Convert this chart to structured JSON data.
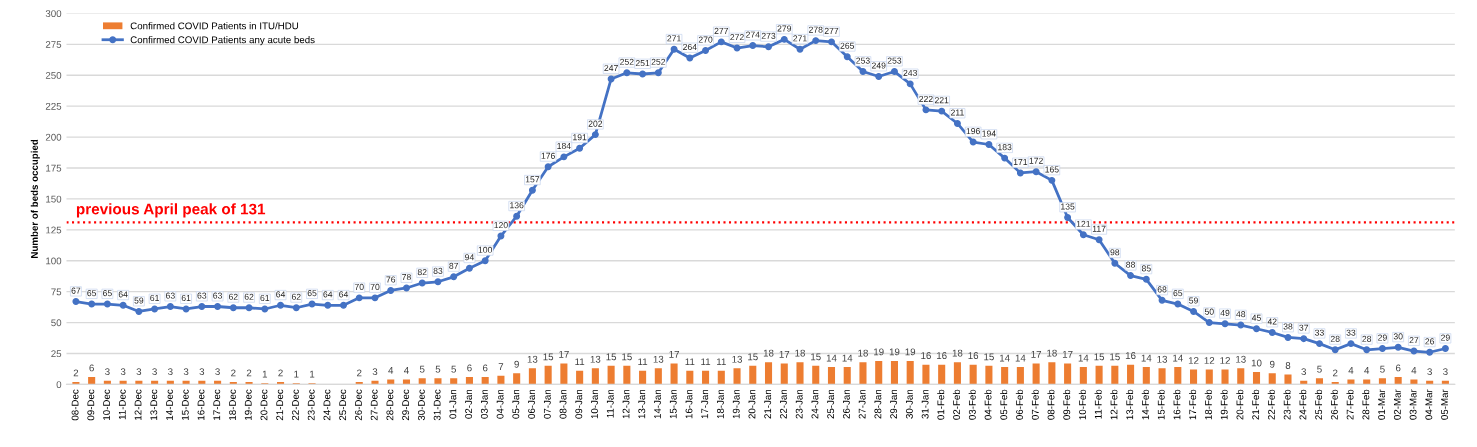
{
  "chart_data": {
    "type": "bar",
    "ylabel": "Number of beds occupied",
    "categories": [
      "08-Dec",
      "09-Dec",
      "10-Dec",
      "11-Dec",
      "12-Dec",
      "13-Dec",
      "14-Dec",
      "15-Dec",
      "16-Dec",
      "17-Dec",
      "18-Dec",
      "19-Dec",
      "20-Dec",
      "21-Dec",
      "22-Dec",
      "23-Dec",
      "24-Dec",
      "25-Dec",
      "26-Dec",
      "27-Dec",
      "28-Dec",
      "29-Dec",
      "30-Dec",
      "31-Dec",
      "01-Jan",
      "02-Jan",
      "03-Jan",
      "04-Jan",
      "05-Jan",
      "06-Jan",
      "07-Jan",
      "08-Jan",
      "09-Jan",
      "10-Jan",
      "11-Jan",
      "12-Jan",
      "13-Jan",
      "14-Jan",
      "15-Jan",
      "16-Jan",
      "17-Jan",
      "18-Jan",
      "19-Jan",
      "20-Jan",
      "21-Jan",
      "22-Jan",
      "23-Jan",
      "24-Jan",
      "25-Jan",
      "26-Jan",
      "27-Jan",
      "28-Jan",
      "29-Jan",
      "30-Jan",
      "31-Jan",
      "01-Feb",
      "02-Feb",
      "03-Feb",
      "04-Feb",
      "05-Feb",
      "06-Feb",
      "07-Feb",
      "08-Feb",
      "09-Feb",
      "10-Feb",
      "11-Feb",
      "12-Feb",
      "13-Feb",
      "14-Feb",
      "15-Feb",
      "16-Feb",
      "17-Feb",
      "18-Feb",
      "19-Feb",
      "20-Feb",
      "21-Feb",
      "22-Feb",
      "23-Feb",
      "24-Feb",
      "25-Feb",
      "26-Feb",
      "27-Feb",
      "28-Feb",
      "01-Mar",
      "02-Mar",
      "03-Mar",
      "04-Mar",
      "05-Mar"
    ],
    "series": [
      {
        "name": "Confirmed COVID Patients in ITU/HDU",
        "color": "#ed7d31",
        "values": [
          2,
          6,
          3,
          3,
          3,
          3,
          3,
          3,
          3,
          3,
          2,
          2,
          1,
          2,
          1,
          1,
          null,
          null,
          2,
          3,
          4,
          4,
          5,
          5,
          5,
          6,
          6,
          7,
          9,
          13,
          15,
          17,
          11,
          13,
          15,
          15,
          11,
          13,
          17,
          11,
          11,
          11,
          13,
          15,
          18,
          17,
          18,
          15,
          14,
          14,
          18,
          19,
          19,
          19,
          16,
          16,
          18,
          16,
          15,
          14,
          14,
          17,
          18,
          17,
          14,
          15,
          15,
          16,
          14,
          13,
          14,
          12,
          12,
          12,
          13,
          10,
          9,
          8,
          3,
          5,
          2,
          4,
          4,
          5,
          6,
          4,
          3,
          3
        ]
      },
      {
        "name": "Confirmed COVID Patients any acute beds",
        "type": "line",
        "color": "#4472c4",
        "marker": "circle",
        "values": [
          67,
          65,
          65,
          64,
          59,
          61,
          63,
          61,
          63,
          63,
          62,
          62,
          61,
          64,
          62,
          65,
          64,
          64,
          70,
          70,
          76,
          78,
          82,
          83,
          87,
          94,
          100,
          120,
          136,
          157,
          176,
          184,
          191,
          202,
          247,
          252,
          251,
          252,
          271,
          264,
          270,
          277,
          272,
          274,
          273,
          279,
          271,
          278,
          277,
          265,
          253,
          249,
          253,
          243,
          222,
          221,
          211,
          196,
          194,
          183,
          171,
          172,
          165,
          135,
          121,
          117,
          98,
          88,
          85,
          68,
          65,
          59,
          50,
          49,
          48,
          45,
          42,
          38,
          37,
          33,
          28,
          33,
          28,
          29,
          30,
          27,
          26,
          29
        ]
      }
    ],
    "ylim": [
      0,
      300
    ],
    "yticks": [
      0,
      25,
      50,
      75,
      100,
      125,
      150,
      175,
      200,
      225,
      250,
      275,
      300
    ],
    "ref_lines": [
      {
        "axis": "y",
        "value": 131,
        "label": "previous April peak of 131",
        "color": "#ff0000",
        "line_style": "dotted"
      }
    ],
    "data_labels": true,
    "grid": "y",
    "legend": "top left"
  }
}
